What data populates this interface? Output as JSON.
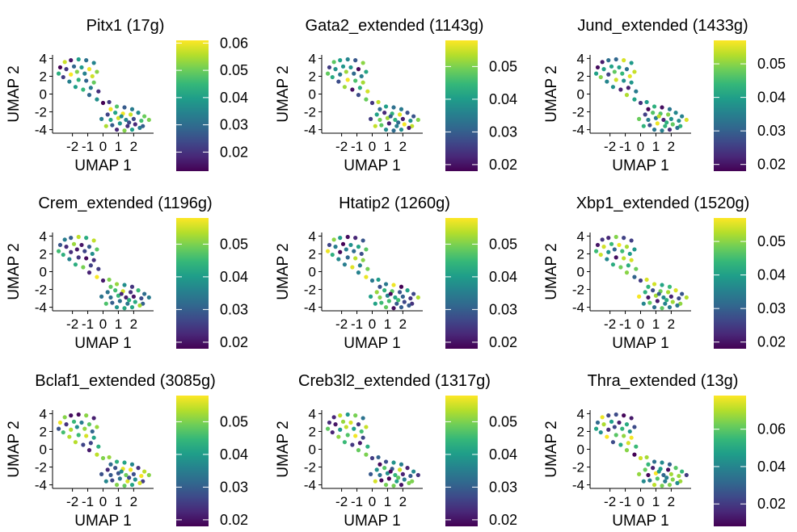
{
  "chart_data": [
    {
      "type": "scatter",
      "title": "Pitx1 (17g)",
      "xlabel": "UMAP 1",
      "ylabel": "UMAP 2",
      "xticks": [
        "-2",
        "-1",
        "0",
        "1",
        "2"
      ],
      "yticks": [
        "4",
        "2",
        "0",
        "-2",
        "-4"
      ],
      "colorbar": {
        "min": 0.013,
        "max": 0.061,
        "ticks": [
          "0.06",
          "0.05",
          "0.04",
          "0.03",
          "0.02"
        ],
        "tick_values": [
          0.06,
          0.05,
          0.04,
          0.03,
          0.02
        ]
      },
      "color_scale": "viridis"
    },
    {
      "type": "scatter",
      "title": "Gata2_extended (1143g)",
      "xlabel": "UMAP 1",
      "ylabel": "UMAP 2",
      "xticks": [
        "-2",
        "-1",
        "0",
        "1",
        "2"
      ],
      "yticks": [
        "4",
        "2",
        "0",
        "-2",
        "-4"
      ],
      "colorbar": {
        "min": 0.018,
        "max": 0.058,
        "ticks": [
          "0.05",
          "0.04",
          "0.03",
          "0.02"
        ],
        "tick_values": [
          0.05,
          0.04,
          0.03,
          0.02
        ]
      },
      "color_scale": "viridis"
    },
    {
      "type": "scatter",
      "title": "Jund_extended (1433g)",
      "xlabel": "UMAP 1",
      "ylabel": "UMAP 2",
      "xticks": [
        "-2",
        "-1",
        "0",
        "1",
        "2"
      ],
      "yticks": [
        "4",
        "2",
        "0",
        "-2",
        "-4"
      ],
      "colorbar": {
        "min": 0.018,
        "max": 0.057,
        "ticks": [
          "0.05",
          "0.04",
          "0.03",
          "0.02"
        ],
        "tick_values": [
          0.05,
          0.04,
          0.03,
          0.02
        ]
      },
      "color_scale": "viridis"
    },
    {
      "type": "scatter",
      "title": "Crem_extended (1196g)",
      "xlabel": "UMAP 1",
      "ylabel": "UMAP 2",
      "xticks": [
        "-2",
        "-1",
        "0",
        "1",
        "2"
      ],
      "yticks": [
        "4",
        "2",
        "0",
        "-2",
        "-4"
      ],
      "colorbar": {
        "min": 0.018,
        "max": 0.058,
        "ticks": [
          "0.05",
          "0.04",
          "0.03",
          "0.02"
        ],
        "tick_values": [
          0.05,
          0.04,
          0.03,
          0.02
        ]
      },
      "color_scale": "viridis"
    },
    {
      "type": "scatter",
      "title": "Htatip2 (1260g)",
      "xlabel": "UMAP 1",
      "ylabel": "UMAP 2",
      "xticks": [
        "-2",
        "-1",
        "0",
        "1",
        "2"
      ],
      "yticks": [
        "4",
        "2",
        "0",
        "-2",
        "-4"
      ],
      "colorbar": {
        "min": 0.018,
        "max": 0.058,
        "ticks": [
          "0.05",
          "0.04",
          "0.03",
          "0.02"
        ],
        "tick_values": [
          0.05,
          0.04,
          0.03,
          0.02
        ]
      },
      "color_scale": "viridis"
    },
    {
      "type": "scatter",
      "title": "Xbp1_extended (1520g)",
      "xlabel": "UMAP 1",
      "ylabel": "UMAP 2",
      "xticks": [
        "-2",
        "-1",
        "0",
        "1",
        "2"
      ],
      "yticks": [
        "4",
        "2",
        "0",
        "-2",
        "-4"
      ],
      "colorbar": {
        "min": 0.018,
        "max": 0.057,
        "ticks": [
          "0.05",
          "0.04",
          "0.03",
          "0.02"
        ],
        "tick_values": [
          0.05,
          0.04,
          0.03,
          0.02
        ]
      },
      "color_scale": "viridis"
    },
    {
      "type": "scatter",
      "title": "Bclaf1_extended (3085g)",
      "xlabel": "UMAP 1",
      "ylabel": "UMAP 2",
      "xticks": [
        "-2",
        "-1",
        "0",
        "1",
        "2"
      ],
      "yticks": [
        "4",
        "2",
        "0",
        "-2",
        "-4"
      ],
      "colorbar": {
        "min": 0.018,
        "max": 0.058,
        "ticks": [
          "0.05",
          "0.04",
          "0.03",
          "0.02"
        ],
        "tick_values": [
          0.05,
          0.04,
          0.03,
          0.02
        ]
      },
      "color_scale": "viridis"
    },
    {
      "type": "scatter",
      "title": "Creb3l2_extended (1317g)",
      "xlabel": "UMAP 1",
      "ylabel": "UMAP 2",
      "xticks": [
        "-2",
        "-1",
        "0",
        "1",
        "2"
      ],
      "yticks": [
        "4",
        "2",
        "0",
        "-2",
        "-4"
      ],
      "colorbar": {
        "min": 0.018,
        "max": 0.058,
        "ticks": [
          "0.05",
          "0.04",
          "0.03",
          "0.02"
        ],
        "tick_values": [
          0.05,
          0.04,
          0.03,
          0.02
        ]
      },
      "color_scale": "viridis"
    },
    {
      "type": "scatter",
      "title": "Thra_extended (13g)",
      "xlabel": "UMAP 1",
      "ylabel": "UMAP 2",
      "xticks": [
        "-2",
        "-1",
        "0",
        "1",
        "2"
      ],
      "yticks": [
        "4",
        "2",
        "0",
        "-2",
        "-4"
      ],
      "colorbar": {
        "min": 0.008,
        "max": 0.078,
        "ticks": [
          "0.06",
          "0.04",
          "0.02"
        ],
        "tick_values": [
          0.06,
          0.04,
          0.02
        ]
      },
      "color_scale": "viridis"
    }
  ],
  "shared_points": [
    {
      "x": -2.8,
      "y": 3.0
    },
    {
      "x": -2.5,
      "y": 3.6
    },
    {
      "x": -2.1,
      "y": 3.8
    },
    {
      "x": -1.6,
      "y": 3.9
    },
    {
      "x": -1.1,
      "y": 3.8
    },
    {
      "x": -0.6,
      "y": 3.5
    },
    {
      "x": -2.9,
      "y": 2.3
    },
    {
      "x": -2.4,
      "y": 2.8
    },
    {
      "x": -1.9,
      "y": 3.1
    },
    {
      "x": -1.4,
      "y": 3.0
    },
    {
      "x": -0.9,
      "y": 2.8
    },
    {
      "x": -0.4,
      "y": 2.5
    },
    {
      "x": -2.6,
      "y": 1.9
    },
    {
      "x": -2.1,
      "y": 2.2
    },
    {
      "x": -1.7,
      "y": 2.5
    },
    {
      "x": -1.2,
      "y": 2.3
    },
    {
      "x": -0.7,
      "y": 2.0
    },
    {
      "x": -2.2,
      "y": 1.4
    },
    {
      "x": -1.6,
      "y": 1.6
    },
    {
      "x": -1.1,
      "y": 1.5
    },
    {
      "x": -0.6,
      "y": 1.3
    },
    {
      "x": -1.8,
      "y": 0.8
    },
    {
      "x": -1.3,
      "y": 0.5
    },
    {
      "x": -0.8,
      "y": 0.7
    },
    {
      "x": -0.3,
      "y": 0.3
    },
    {
      "x": -0.9,
      "y": -0.1
    },
    {
      "x": -0.4,
      "y": -0.6
    },
    {
      "x": 0.0,
      "y": -1.0
    },
    {
      "x": 0.4,
      "y": -0.9
    },
    {
      "x": -0.1,
      "y": -2.8
    },
    {
      "x": 0.5,
      "y": -1.7
    },
    {
      "x": 0.9,
      "y": -1.4
    },
    {
      "x": 1.4,
      "y": -1.5
    },
    {
      "x": 1.9,
      "y": -1.7
    },
    {
      "x": 0.3,
      "y": -2.3
    },
    {
      "x": 0.8,
      "y": -2.1
    },
    {
      "x": 1.3,
      "y": -2.2
    },
    {
      "x": 1.8,
      "y": -2.3
    },
    {
      "x": 2.3,
      "y": -2.1
    },
    {
      "x": 2.7,
      "y": -2.5
    },
    {
      "x": 0.5,
      "y": -2.9
    },
    {
      "x": 1.0,
      "y": -2.7
    },
    {
      "x": 1.5,
      "y": -2.9
    },
    {
      "x": 2.0,
      "y": -2.8
    },
    {
      "x": 2.5,
      "y": -3.0
    },
    {
      "x": 3.0,
      "y": -2.9
    },
    {
      "x": 0.6,
      "y": -3.5
    },
    {
      "x": 1.1,
      "y": -3.3
    },
    {
      "x": 1.6,
      "y": -3.6
    },
    {
      "x": 2.1,
      "y": -3.4
    },
    {
      "x": 2.6,
      "y": -3.6
    },
    {
      "x": 0.9,
      "y": -4.0
    },
    {
      "x": 1.4,
      "y": -4.1
    },
    {
      "x": 1.9,
      "y": -4.0
    },
    {
      "x": 2.4,
      "y": -3.8
    },
    {
      "x": 0.2,
      "y": -3.6
    },
    {
      "x": 1.2,
      "y": -2.5
    },
    {
      "x": 1.7,
      "y": -3.2
    }
  ]
}
